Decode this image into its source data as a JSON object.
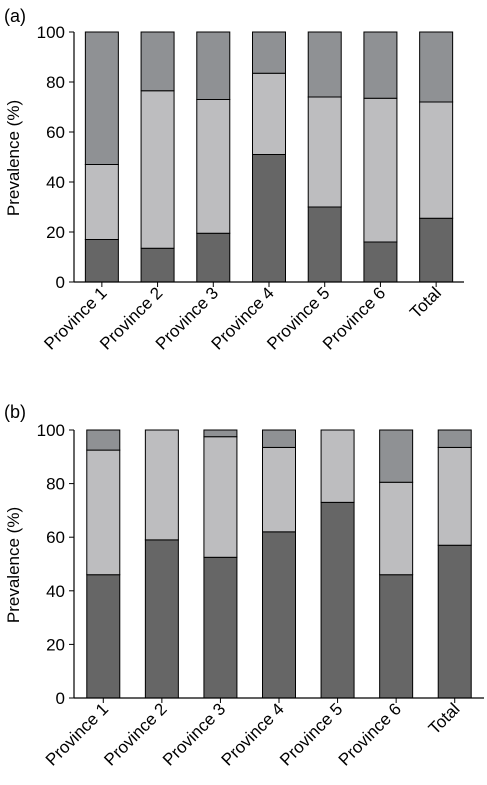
{
  "colors": {
    "bottom": "#666666",
    "middle": "#bdbdbf",
    "top": "#8f9194"
  },
  "chart_data": [
    {
      "panel_label": "(a)",
      "type": "bar",
      "stacked": true,
      "ylabel": "Prevalence (%)",
      "ylim": [
        0,
        100
      ],
      "yticks": [
        "0",
        "20",
        "40",
        "60",
        "80",
        "100"
      ],
      "categories": [
        "Province 1",
        "Province 2",
        "Province 3",
        "Province 4",
        "Province 5",
        "Province 6",
        "Total"
      ],
      "series": [
        {
          "values": [
            17,
            13.5,
            19.5,
            51,
            30,
            16,
            25.5
          ]
        },
        {
          "values": [
            30,
            63,
            53.5,
            32.5,
            44,
            57.5,
            46.5
          ]
        },
        {
          "values": [
            53,
            23.5,
            27,
            16.5,
            26,
            26.5,
            28
          ]
        }
      ]
    },
    {
      "panel_label": "(b)",
      "type": "bar",
      "stacked": true,
      "ylabel": "Prevalence (%)",
      "ylim": [
        0,
        100
      ],
      "yticks": [
        "0",
        "20",
        "40",
        "60",
        "80",
        "100"
      ],
      "categories": [
        "Province 1",
        "Province 2",
        "Province 3",
        "Province 4",
        "Province 5",
        "Province 6",
        "Total"
      ],
      "series": [
        {
          "values": [
            46,
            59,
            52.5,
            62,
            73,
            46,
            57
          ]
        },
        {
          "values": [
            46.5,
            41,
            45,
            31.5,
            27,
            34.5,
            36.5
          ]
        },
        {
          "values": [
            7.5,
            0,
            2.5,
            6.5,
            0,
            19.5,
            6.5
          ]
        }
      ]
    }
  ]
}
